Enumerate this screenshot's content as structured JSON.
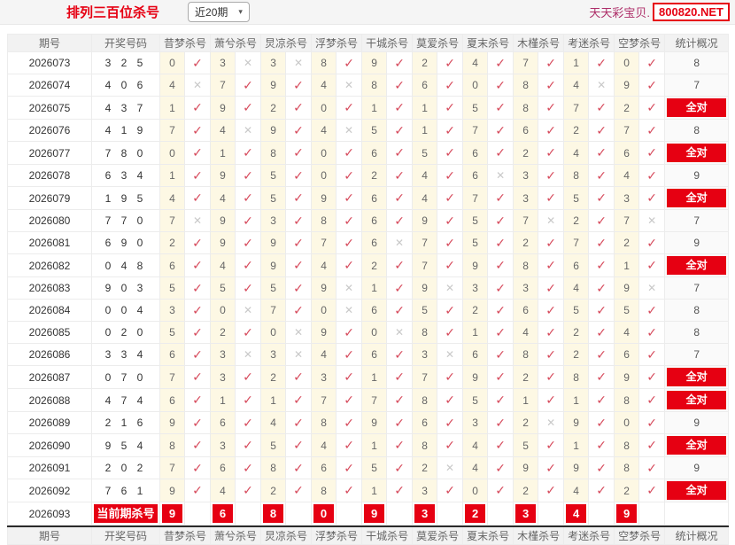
{
  "colors": {
    "accent_red": "#e60012",
    "check_red": "#d6495b",
    "cross_gray": "#c9c9c9",
    "kill_cell_yellow": "#fdf8e4",
    "site_name_color": "#ad2d68"
  },
  "header": {
    "title": "排列三百位杀号",
    "range_value": "近20期",
    "site_name": "天天彩宝贝.",
    "site_url": "800820.NET"
  },
  "icons": {
    "check": "✓",
    "cross": "✕",
    "chevron_down": "▾"
  },
  "table": {
    "col_headers": [
      "期号",
      "开奖号码",
      "昔梦杀号",
      "萧兮杀号",
      "炅凉杀号",
      "浮梦杀号",
      "干城杀号",
      "莫爱杀号",
      "夏末杀号",
      "木槿杀号",
      "考迷杀号",
      "空梦杀号",
      "统计概况"
    ],
    "all_correct_label": "全对",
    "rows": [
      {
        "period": "2026073",
        "numbers": "3 2 5",
        "kills": [
          [
            0,
            1
          ],
          [
            3,
            0
          ],
          [
            3,
            0
          ],
          [
            8,
            1
          ],
          [
            9,
            1
          ],
          [
            2,
            1
          ],
          [
            4,
            1
          ],
          [
            7,
            1
          ],
          [
            1,
            1
          ],
          [
            0,
            1
          ]
        ],
        "stat": "8"
      },
      {
        "period": "2026074",
        "numbers": "4 0 6",
        "kills": [
          [
            4,
            0
          ],
          [
            7,
            1
          ],
          [
            9,
            1
          ],
          [
            4,
            0
          ],
          [
            8,
            1
          ],
          [
            6,
            1
          ],
          [
            0,
            1
          ],
          [
            8,
            1
          ],
          [
            4,
            0
          ],
          [
            9,
            1
          ]
        ],
        "stat": "7"
      },
      {
        "period": "2026075",
        "numbers": "4 3 7",
        "kills": [
          [
            1,
            1
          ],
          [
            9,
            1
          ],
          [
            2,
            1
          ],
          [
            0,
            1
          ],
          [
            1,
            1
          ],
          [
            1,
            1
          ],
          [
            5,
            1
          ],
          [
            8,
            1
          ],
          [
            7,
            1
          ],
          [
            2,
            1
          ]
        ],
        "stat": "全对"
      },
      {
        "period": "2026076",
        "numbers": "4 1 9",
        "kills": [
          [
            7,
            1
          ],
          [
            4,
            0
          ],
          [
            9,
            1
          ],
          [
            4,
            0
          ],
          [
            5,
            1
          ],
          [
            1,
            1
          ],
          [
            7,
            1
          ],
          [
            6,
            1
          ],
          [
            2,
            1
          ],
          [
            7,
            1
          ]
        ],
        "stat": "8"
      },
      {
        "period": "2026077",
        "numbers": "7 8 0",
        "kills": [
          [
            0,
            1
          ],
          [
            1,
            1
          ],
          [
            8,
            1
          ],
          [
            0,
            1
          ],
          [
            6,
            1
          ],
          [
            5,
            1
          ],
          [
            6,
            1
          ],
          [
            2,
            1
          ],
          [
            4,
            1
          ],
          [
            6,
            1
          ]
        ],
        "stat": "全对"
      },
      {
        "period": "2026078",
        "numbers": "6 3 4",
        "kills": [
          [
            1,
            1
          ],
          [
            9,
            1
          ],
          [
            5,
            1
          ],
          [
            0,
            1
          ],
          [
            2,
            1
          ],
          [
            4,
            1
          ],
          [
            6,
            0
          ],
          [
            3,
            1
          ],
          [
            8,
            1
          ],
          [
            4,
            1
          ]
        ],
        "stat": "9"
      },
      {
        "period": "2026079",
        "numbers": "1 9 5",
        "kills": [
          [
            4,
            1
          ],
          [
            4,
            1
          ],
          [
            5,
            1
          ],
          [
            9,
            1
          ],
          [
            6,
            1
          ],
          [
            4,
            1
          ],
          [
            7,
            1
          ],
          [
            3,
            1
          ],
          [
            5,
            1
          ],
          [
            3,
            1
          ]
        ],
        "stat": "全对"
      },
      {
        "period": "2026080",
        "numbers": "7 7 0",
        "kills": [
          [
            7,
            0
          ],
          [
            9,
            1
          ],
          [
            3,
            1
          ],
          [
            8,
            1
          ],
          [
            6,
            1
          ],
          [
            9,
            1
          ],
          [
            5,
            1
          ],
          [
            7,
            0
          ],
          [
            2,
            1
          ],
          [
            7,
            0
          ]
        ],
        "stat": "7"
      },
      {
        "period": "2026081",
        "numbers": "6 9 0",
        "kills": [
          [
            2,
            1
          ],
          [
            9,
            1
          ],
          [
            9,
            1
          ],
          [
            7,
            1
          ],
          [
            6,
            0
          ],
          [
            7,
            1
          ],
          [
            5,
            1
          ],
          [
            2,
            1
          ],
          [
            7,
            1
          ],
          [
            2,
            1
          ]
        ],
        "stat": "9"
      },
      {
        "period": "2026082",
        "numbers": "0 4 8",
        "kills": [
          [
            6,
            1
          ],
          [
            4,
            1
          ],
          [
            9,
            1
          ],
          [
            4,
            1
          ],
          [
            2,
            1
          ],
          [
            7,
            1
          ],
          [
            9,
            1
          ],
          [
            8,
            1
          ],
          [
            6,
            1
          ],
          [
            1,
            1
          ]
        ],
        "stat": "全对"
      },
      {
        "period": "2026083",
        "numbers": "9 0 3",
        "kills": [
          [
            5,
            1
          ],
          [
            5,
            1
          ],
          [
            5,
            1
          ],
          [
            9,
            0
          ],
          [
            1,
            1
          ],
          [
            9,
            0
          ],
          [
            3,
            1
          ],
          [
            3,
            1
          ],
          [
            4,
            1
          ],
          [
            9,
            0
          ]
        ],
        "stat": "7"
      },
      {
        "period": "2026084",
        "numbers": "0 0 4",
        "kills": [
          [
            3,
            1
          ],
          [
            0,
            0
          ],
          [
            7,
            1
          ],
          [
            0,
            0
          ],
          [
            6,
            1
          ],
          [
            5,
            1
          ],
          [
            2,
            1
          ],
          [
            6,
            1
          ],
          [
            5,
            1
          ],
          [
            5,
            1
          ]
        ],
        "stat": "8"
      },
      {
        "period": "2026085",
        "numbers": "0 2 0",
        "kills": [
          [
            5,
            1
          ],
          [
            2,
            1
          ],
          [
            0,
            0
          ],
          [
            9,
            1
          ],
          [
            0,
            0
          ],
          [
            8,
            1
          ],
          [
            1,
            1
          ],
          [
            4,
            1
          ],
          [
            2,
            1
          ],
          [
            4,
            1
          ]
        ],
        "stat": "8"
      },
      {
        "period": "2026086",
        "numbers": "3 3 4",
        "kills": [
          [
            6,
            1
          ],
          [
            3,
            0
          ],
          [
            3,
            0
          ],
          [
            4,
            1
          ],
          [
            6,
            1
          ],
          [
            3,
            0
          ],
          [
            6,
            1
          ],
          [
            8,
            1
          ],
          [
            2,
            1
          ],
          [
            6,
            1
          ]
        ],
        "stat": "7"
      },
      {
        "period": "2026087",
        "numbers": "0 7 0",
        "kills": [
          [
            7,
            1
          ],
          [
            3,
            1
          ],
          [
            2,
            1
          ],
          [
            3,
            1
          ],
          [
            1,
            1
          ],
          [
            7,
            1
          ],
          [
            9,
            1
          ],
          [
            2,
            1
          ],
          [
            8,
            1
          ],
          [
            9,
            1
          ]
        ],
        "stat": "全对"
      },
      {
        "period": "2026088",
        "numbers": "4 7 4",
        "kills": [
          [
            6,
            1
          ],
          [
            1,
            1
          ],
          [
            1,
            1
          ],
          [
            7,
            1
          ],
          [
            7,
            1
          ],
          [
            8,
            1
          ],
          [
            5,
            1
          ],
          [
            1,
            1
          ],
          [
            1,
            1
          ],
          [
            8,
            1
          ]
        ],
        "stat": "全对"
      },
      {
        "period": "2026089",
        "numbers": "2 1 6",
        "kills": [
          [
            9,
            1
          ],
          [
            6,
            1
          ],
          [
            4,
            1
          ],
          [
            8,
            1
          ],
          [
            9,
            1
          ],
          [
            6,
            1
          ],
          [
            3,
            1
          ],
          [
            2,
            0
          ],
          [
            9,
            1
          ],
          [
            0,
            1
          ]
        ],
        "stat": "9"
      },
      {
        "period": "2026090",
        "numbers": "9 5 4",
        "kills": [
          [
            8,
            1
          ],
          [
            3,
            1
          ],
          [
            5,
            1
          ],
          [
            4,
            1
          ],
          [
            1,
            1
          ],
          [
            8,
            1
          ],
          [
            4,
            1
          ],
          [
            5,
            1
          ],
          [
            1,
            1
          ],
          [
            8,
            1
          ]
        ],
        "stat": "全对"
      },
      {
        "period": "2026091",
        "numbers": "2 0 2",
        "kills": [
          [
            7,
            1
          ],
          [
            6,
            1
          ],
          [
            8,
            1
          ],
          [
            6,
            1
          ],
          [
            5,
            1
          ],
          [
            2,
            0
          ],
          [
            4,
            1
          ],
          [
            9,
            1
          ],
          [
            9,
            1
          ],
          [
            8,
            1
          ]
        ],
        "stat": "9"
      },
      {
        "period": "2026092",
        "numbers": "7 6 1",
        "kills": [
          [
            9,
            1
          ],
          [
            4,
            1
          ],
          [
            2,
            1
          ],
          [
            8,
            1
          ],
          [
            1,
            1
          ],
          [
            3,
            1
          ],
          [
            0,
            1
          ],
          [
            2,
            1
          ],
          [
            4,
            1
          ],
          [
            2,
            1
          ]
        ],
        "stat": "全对"
      }
    ],
    "current": {
      "period": "2026093",
      "label": "当前期杀号",
      "kills": [
        9,
        6,
        8,
        0,
        9,
        3,
        2,
        3,
        4,
        9
      ]
    }
  }
}
